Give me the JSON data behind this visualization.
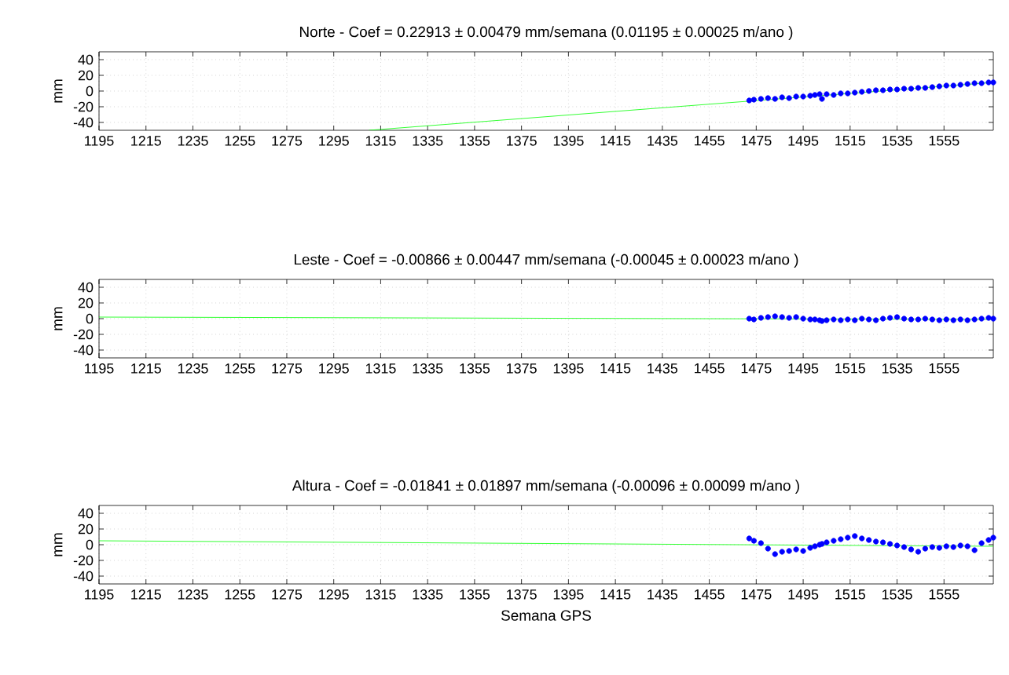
{
  "chart_data": [
    {
      "type": "scatter",
      "title": "Norte - Coef = 0.22913 ± 0.00479 mm/semana (0.01195 ± 0.00025 m/ano )",
      "ylabel": "mm",
      "xlim": [
        1195,
        1576
      ],
      "ylim": [
        -50,
        50
      ],
      "xticks": [
        1195,
        1215,
        1235,
        1255,
        1275,
        1295,
        1315,
        1335,
        1355,
        1375,
        1395,
        1415,
        1435,
        1455,
        1475,
        1495,
        1515,
        1535,
        1555
      ],
      "yticks": [
        -40,
        -20,
        0,
        20,
        40
      ],
      "grid": true,
      "series": [
        {
          "color": "#0000ff",
          "marker": "circle",
          "x": [
            1472,
            1474,
            1477,
            1480,
            1483,
            1486,
            1489,
            1492,
            1495,
            1498,
            1500,
            1502,
            1503,
            1505,
            1508,
            1511,
            1514,
            1517,
            1520,
            1523,
            1526,
            1529,
            1532,
            1535,
            1538,
            1541,
            1544,
            1547,
            1550,
            1553,
            1556,
            1559,
            1562,
            1565,
            1568,
            1571,
            1574,
            1576
          ],
          "values": [
            -12,
            -11,
            -10,
            -9,
            -10,
            -8,
            -9,
            -7,
            -7,
            -6,
            -5,
            -4,
            -10,
            -4,
            -5,
            -3,
            -3,
            -2,
            -1,
            0,
            1,
            1,
            2,
            2,
            3,
            3,
            4,
            4,
            5,
            6,
            7,
            7,
            8,
            9,
            10,
            10,
            11,
            11
          ]
        },
        {
          "type": "line",
          "color": "#00ff00",
          "marker": "none",
          "x": [
            1310,
            1576
          ],
          "values": [
            -50,
            11
          ]
        }
      ]
    },
    {
      "type": "scatter",
      "title": "Leste - Coef = -0.00866 ± 0.00447 mm/semana (-0.00045 ± 0.00023 m/ano )",
      "ylabel": "mm",
      "xlim": [
        1195,
        1576
      ],
      "ylim": [
        -50,
        50
      ],
      "xticks": [
        1195,
        1215,
        1235,
        1255,
        1275,
        1295,
        1315,
        1335,
        1355,
        1375,
        1395,
        1415,
        1435,
        1455,
        1475,
        1495,
        1515,
        1535,
        1555
      ],
      "yticks": [
        -40,
        -20,
        0,
        20,
        40
      ],
      "grid": true,
      "series": [
        {
          "color": "#0000ff",
          "marker": "circle",
          "x": [
            1472,
            1474,
            1477,
            1480,
            1483,
            1486,
            1489,
            1492,
            1495,
            1498,
            1500,
            1502,
            1503,
            1505,
            1508,
            1511,
            1514,
            1517,
            1520,
            1523,
            1526,
            1529,
            1532,
            1535,
            1538,
            1541,
            1544,
            1547,
            1550,
            1553,
            1556,
            1559,
            1562,
            1565,
            1568,
            1571,
            1574,
            1576
          ],
          "values": [
            0,
            -1,
            1,
            2,
            3,
            2,
            1,
            2,
            0,
            -1,
            -1,
            -2,
            -3,
            -2,
            -1,
            -2,
            -1,
            -2,
            0,
            -1,
            -2,
            0,
            1,
            2,
            0,
            -1,
            -1,
            0,
            -1,
            -2,
            -1,
            -2,
            -1,
            -2,
            -1,
            0,
            1,
            0
          ]
        },
        {
          "type": "line",
          "color": "#00ff00",
          "marker": "none",
          "x": [
            1195,
            1576
          ],
          "values": [
            2,
            -1
          ]
        }
      ]
    },
    {
      "type": "scatter",
      "title": "Altura - Coef = -0.01841 ± 0.01897 mm/semana (-0.00096 ± 0.00099 m/ano )",
      "xlabel": "Semana GPS",
      "ylabel": "mm",
      "xlim": [
        1195,
        1576
      ],
      "ylim": [
        -50,
        50
      ],
      "xticks": [
        1195,
        1215,
        1235,
        1255,
        1275,
        1295,
        1315,
        1335,
        1355,
        1375,
        1395,
        1415,
        1435,
        1455,
        1475,
        1495,
        1515,
        1535,
        1555
      ],
      "yticks": [
        -40,
        -20,
        0,
        20,
        40
      ],
      "grid": true,
      "series": [
        {
          "color": "#0000ff",
          "marker": "circle",
          "x": [
            1472,
            1474,
            1477,
            1480,
            1483,
            1486,
            1489,
            1492,
            1495,
            1498,
            1500,
            1502,
            1503,
            1505,
            1508,
            1511,
            1514,
            1517,
            1520,
            1523,
            1526,
            1529,
            1532,
            1535,
            1538,
            1541,
            1544,
            1547,
            1550,
            1553,
            1556,
            1559,
            1562,
            1565,
            1568,
            1571,
            1574,
            1576
          ],
          "values": [
            8,
            5,
            2,
            -5,
            -12,
            -9,
            -8,
            -6,
            -8,
            -4,
            -2,
            0,
            1,
            3,
            5,
            7,
            9,
            11,
            8,
            6,
            4,
            3,
            1,
            -1,
            -3,
            -6,
            -9,
            -5,
            -3,
            -4,
            -2,
            -3,
            -1,
            -2,
            -7,
            2,
            6,
            9
          ]
        },
        {
          "type": "line",
          "color": "#00ff00",
          "marker": "none",
          "x": [
            1195,
            1576
          ],
          "values": [
            5,
            -2
          ]
        }
      ]
    }
  ]
}
